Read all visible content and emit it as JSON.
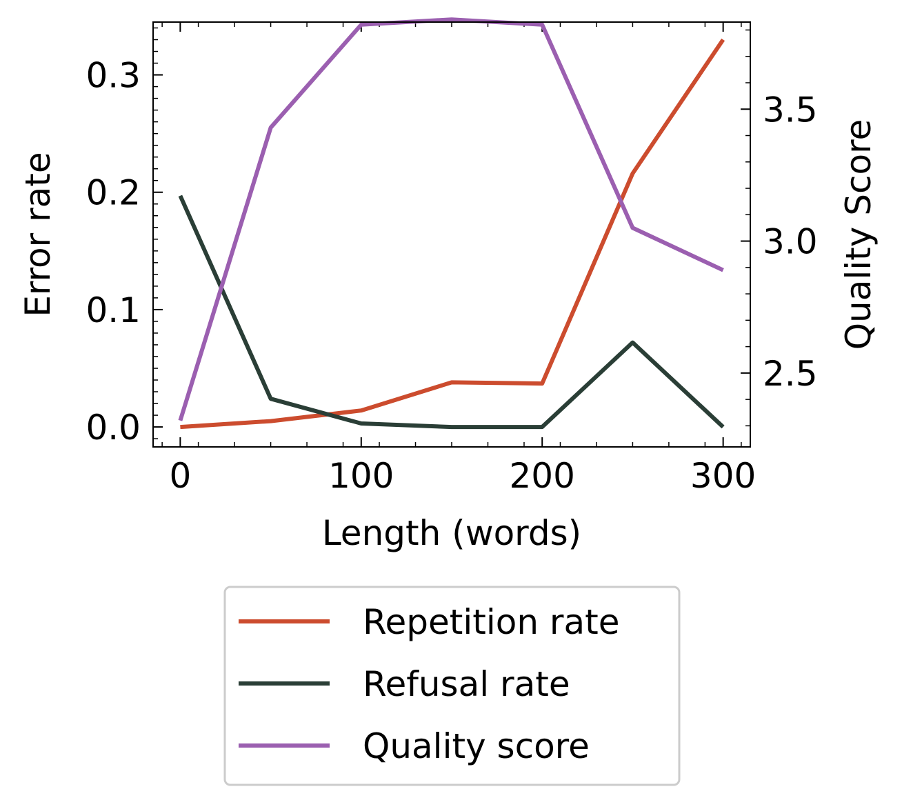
{
  "chart_data": {
    "type": "line",
    "xlabel": "Length (words)",
    "ylabel": "Error rate",
    "y2label": "Quality Score",
    "xlim": [
      -15,
      315
    ],
    "ylim": [
      -0.017,
      0.345
    ],
    "y2lim": [
      2.22,
      3.83
    ],
    "xticks": [
      {
        "v": 0,
        "t": "0"
      },
      {
        "v": 100,
        "t": "100"
      },
      {
        "v": 200,
        "t": "200"
      },
      {
        "v": 300,
        "t": "300"
      }
    ],
    "yticks": [
      {
        "v": 0.0,
        "t": "0.0"
      },
      {
        "v": 0.1,
        "t": "0.1"
      },
      {
        "v": 0.2,
        "t": "0.2"
      },
      {
        "v": 0.3,
        "t": "0.3"
      }
    ],
    "y2ticks": [
      {
        "v": 2.5,
        "t": "2.5"
      },
      {
        "v": 3.0,
        "t": "3.0"
      },
      {
        "v": 3.5,
        "t": "3.5"
      }
    ],
    "x": [
      0,
      50,
      100,
      150,
      200,
      250,
      300
    ],
    "series": [
      {
        "name": "Repetition rate",
        "axis": "left",
        "color": "#cc4c2e",
        "values": [
          0.0,
          0.005,
          0.014,
          0.038,
          0.037,
          0.216,
          0.33
        ]
      },
      {
        "name": "Refusal rate",
        "axis": "left",
        "color": "#2a3e36",
        "values": [
          0.197,
          0.024,
          0.003,
          0.0,
          0.0,
          0.072,
          0.0
        ]
      },
      {
        "name": "Quality score",
        "axis": "right",
        "color": "#9b5fb0",
        "values": [
          2.32,
          3.43,
          3.82,
          3.84,
          3.82,
          3.05,
          2.89
        ]
      }
    ],
    "legend_position": "below"
  }
}
